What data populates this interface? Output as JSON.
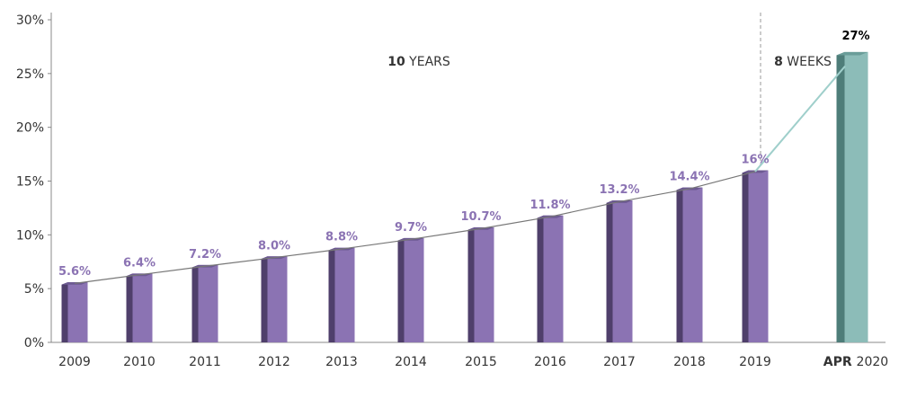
{
  "chart_data": {
    "type": "bar",
    "categories": [
      "2009",
      "2010",
      "2011",
      "2012",
      "2013",
      "2014",
      "2015",
      "2016",
      "2017",
      "2018",
      "2019",
      "APR 2020"
    ],
    "category_bold_part": [
      "",
      "",
      "",
      "",
      "",
      "",
      "",
      "",
      "",
      "",
      "",
      "APR"
    ],
    "category_rest_part": [
      "2009",
      "2010",
      "2011",
      "2012",
      "2013",
      "2014",
      "2015",
      "2016",
      "2017",
      "2018",
      "2019",
      "2020"
    ],
    "values": [
      5.6,
      6.4,
      7.2,
      8.0,
      8.8,
      9.7,
      10.7,
      11.8,
      13.2,
      14.4,
      16,
      27
    ],
    "data_labels": [
      "5.6%",
      "6.4%",
      "7.2%",
      "8.0%",
      "8.8%",
      "9.7%",
      "10.7%",
      "11.8%",
      "13.2%",
      "14.4%",
      "16%",
      "27%"
    ],
    "title": "",
    "xlabel": "",
    "ylabel": "",
    "ylim": [
      0,
      30
    ],
    "yticks": [
      {
        "value": 0,
        "label": "0%"
      },
      {
        "value": 5,
        "label": "5%"
      },
      {
        "value": 10,
        "label": "10%"
      },
      {
        "value": 15,
        "label": "15%"
      },
      {
        "value": 20,
        "label": "20%"
      },
      {
        "value": 25,
        "label": "25%"
      },
      {
        "value": 30,
        "label": "30%"
      }
    ],
    "grid": false,
    "highlight_index": 11,
    "annotations": {
      "ten_years": {
        "bold": "10",
        "text": " YEARS"
      },
      "eight_weeks": {
        "bold": "8",
        "text": " WEEKS"
      }
    },
    "colors": {
      "bar_front": "#8b73b3",
      "bar_side": "#4f3f6b",
      "bar_top": "#6d5a92",
      "highlight_front": "#8cbcb8",
      "highlight_side": "#4e7d79",
      "highlight_top": "#6a9d99",
      "label": "#8b73b3",
      "highlight_label": "#000000",
      "trend_line": "#777777",
      "highlight_line": "#9fcfcb",
      "axis": "#888888",
      "divider": "#aaaaaa"
    }
  }
}
